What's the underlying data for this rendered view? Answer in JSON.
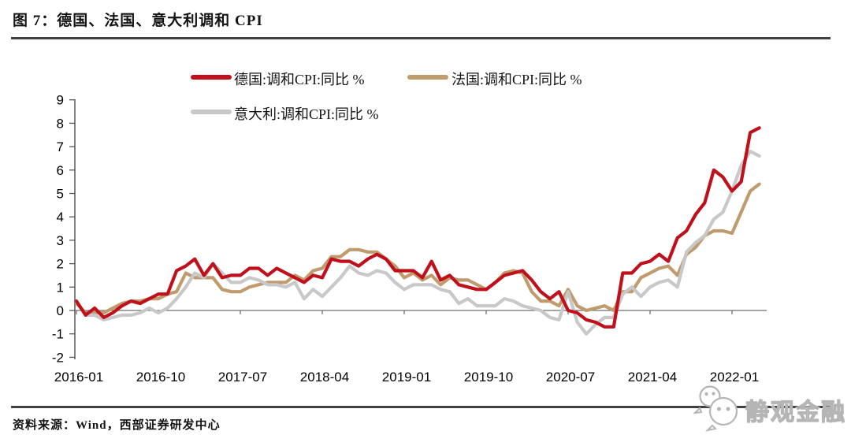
{
  "figure": {
    "title": "图 7：德国、法国、意大利调和 CPI",
    "source": "资料来源：Wind，西部证券研发中心",
    "watermark_text": "静观金融",
    "watermark_icon": "wechat-icon",
    "rule_color": "#404040",
    "text_color": "#141414",
    "watermark_color": "#b5b5b5"
  },
  "chart_data": {
    "type": "line",
    "title": "德国、法国、意大利调和 CPI",
    "xlabel": "",
    "ylabel": "",
    "ylim": [
      -2,
      9
    ],
    "y_ticks": [
      9,
      8,
      7,
      6,
      5,
      4,
      3,
      2,
      1,
      0,
      -1,
      -2
    ],
    "x_tick_labels": [
      "2016-01",
      "2016-10",
      "2017-07",
      "2018-04",
      "2019-01",
      "2019-10",
      "2020-07",
      "2021-04",
      "2022-01"
    ],
    "grid": false,
    "legend_position": "top",
    "axis_color": "#595959",
    "zero_line_color": "#6f6f6f",
    "x_months": [
      "2016-01",
      "2016-02",
      "2016-03",
      "2016-04",
      "2016-05",
      "2016-06",
      "2016-07",
      "2016-08",
      "2016-09",
      "2016-10",
      "2016-11",
      "2016-12",
      "2017-01",
      "2017-02",
      "2017-03",
      "2017-04",
      "2017-05",
      "2017-06",
      "2017-07",
      "2017-08",
      "2017-09",
      "2017-10",
      "2017-11",
      "2017-12",
      "2018-01",
      "2018-02",
      "2018-03",
      "2018-04",
      "2018-05",
      "2018-06",
      "2018-07",
      "2018-08",
      "2018-09",
      "2018-10",
      "2018-11",
      "2018-12",
      "2019-01",
      "2019-02",
      "2019-03",
      "2019-04",
      "2019-05",
      "2019-06",
      "2019-07",
      "2019-08",
      "2019-09",
      "2019-10",
      "2019-11",
      "2019-12",
      "2020-01",
      "2020-02",
      "2020-03",
      "2020-04",
      "2020-05",
      "2020-06",
      "2020-07",
      "2020-08",
      "2020-09",
      "2020-10",
      "2020-11",
      "2020-12",
      "2021-01",
      "2021-02",
      "2021-03",
      "2021-04",
      "2021-05",
      "2021-06",
      "2021-07",
      "2021-08",
      "2021-09",
      "2021-10",
      "2021-11",
      "2021-12",
      "2022-01",
      "2022-02",
      "2022-03",
      "2022-04"
    ],
    "series": [
      {
        "id": "germany",
        "name": "德国:调和CPI:同比 %",
        "color": "#c0101c",
        "values": [
          0.4,
          -0.2,
          0.1,
          -0.3,
          -0.1,
          0.2,
          0.4,
          0.3,
          0.5,
          0.7,
          0.7,
          1.7,
          1.9,
          2.2,
          1.5,
          2.0,
          1.4,
          1.5,
          1.5,
          1.8,
          1.8,
          1.5,
          1.8,
          1.6,
          1.4,
          1.2,
          1.5,
          1.4,
          2.2,
          2.1,
          2.1,
          1.9,
          2.2,
          2.4,
          2.2,
          1.7,
          1.7,
          1.7,
          1.4,
          2.1,
          1.3,
          1.5,
          1.1,
          1.0,
          0.9,
          0.9,
          1.2,
          1.5,
          1.6,
          1.7,
          1.3,
          0.8,
          0.5,
          0.8,
          0.0,
          -0.1,
          -0.4,
          -0.5,
          -0.7,
          -0.7,
          1.6,
          1.6,
          2.0,
          2.1,
          2.4,
          2.1,
          3.1,
          3.4,
          4.1,
          4.6,
          6.0,
          5.7,
          5.1,
          5.5,
          7.6,
          7.8
        ]
      },
      {
        "id": "france",
        "name": "法国:调和CPI:同比 %",
        "color": "#bf9b6e",
        "values": [
          0.3,
          -0.1,
          -0.1,
          -0.1,
          0.1,
          0.3,
          0.4,
          0.4,
          0.5,
          0.5,
          0.7,
          0.8,
          1.6,
          1.4,
          1.4,
          1.4,
          0.9,
          0.8,
          0.8,
          1.0,
          1.1,
          1.2,
          1.2,
          1.2,
          1.5,
          1.3,
          1.7,
          1.8,
          2.3,
          2.3,
          2.6,
          2.6,
          2.5,
          2.5,
          2.2,
          1.9,
          1.4,
          1.6,
          1.3,
          1.5,
          1.1,
          1.4,
          1.3,
          1.3,
          1.1,
          0.9,
          1.2,
          1.6,
          1.7,
          1.6,
          0.8,
          0.4,
          0.4,
          0.2,
          0.9,
          0.2,
          0.0,
          0.1,
          0.2,
          0.0,
          0.8,
          0.8,
          1.4,
          1.6,
          1.8,
          1.9,
          1.5,
          2.4,
          2.7,
          3.2,
          3.4,
          3.4,
          3.3,
          4.2,
          5.1,
          5.4
        ]
      },
      {
        "id": "italy",
        "name": "意大利:调和CPI:同比 %",
        "color": "#c8c8c8",
        "values": [
          0.4,
          -0.2,
          -0.2,
          -0.4,
          -0.3,
          -0.2,
          -0.2,
          -0.1,
          0.1,
          -0.1,
          0.1,
          0.5,
          1.0,
          1.6,
          1.4,
          2.0,
          1.6,
          1.2,
          1.2,
          1.4,
          1.3,
          1.1,
          1.1,
          1.0,
          1.2,
          0.5,
          0.9,
          0.6,
          1.0,
          1.4,
          1.9,
          1.6,
          1.5,
          1.7,
          1.6,
          1.2,
          0.9,
          1.1,
          1.1,
          1.1,
          0.9,
          0.8,
          0.3,
          0.5,
          0.2,
          0.2,
          0.2,
          0.5,
          0.4,
          0.2,
          0.1,
          0.0,
          -0.3,
          -0.4,
          0.8,
          -0.5,
          -1.0,
          -0.6,
          -0.3,
          -0.3,
          0.7,
          1.0,
          0.6,
          1.0,
          1.2,
          1.3,
          1.0,
          2.5,
          2.9,
          3.2,
          3.9,
          4.2,
          5.1,
          6.2,
          6.8,
          6.6
        ]
      }
    ]
  }
}
